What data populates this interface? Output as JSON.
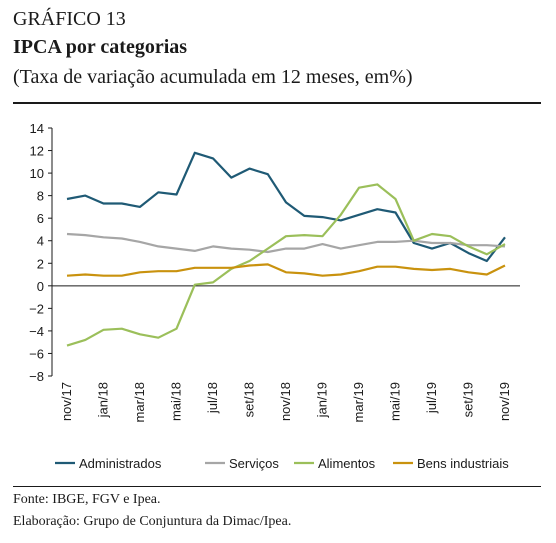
{
  "figure": {
    "number": "GRÁFICO 13",
    "title": "IPCA por categorias",
    "subtitle": "(Taxa de variação acumulada em 12 meses, em%)"
  },
  "footnotes": {
    "source": "Fonte: IBGE, FGV e Ipea.",
    "elaboration": "Elaboração: Grupo de Conjuntura da Dimac/Ipea."
  },
  "chart_data": {
    "type": "line",
    "x": [
      "nov/17",
      "dez/17",
      "jan/18",
      "fev/18",
      "mar/18",
      "abr/18",
      "mai/18",
      "jun/18",
      "jul/18",
      "ago/18",
      "set/18",
      "out/18",
      "nov/18",
      "dez/18",
      "jan/19",
      "fev/19",
      "mar/19",
      "abr/19",
      "mai/19",
      "jun/19",
      "jul/19",
      "ago/19",
      "set/19",
      "out/19",
      "nov/19"
    ],
    "xticklabels": [
      "nov/17",
      "jan/18",
      "mar/18",
      "mai/18",
      "jul/18",
      "set/18",
      "nov/18",
      "jan/19",
      "mar/19",
      "mai/19",
      "jul/19",
      "set/19",
      "nov/19"
    ],
    "ylim": [
      -8,
      14
    ],
    "yticks": [
      -8,
      -6,
      -4,
      -2,
      0,
      2,
      4,
      6,
      8,
      10,
      12,
      14
    ],
    "grid": false,
    "legend_position": "bottom",
    "series": [
      {
        "name": "Administrados",
        "color": "#1f5a75",
        "values": [
          7.7,
          8.0,
          7.3,
          7.3,
          7.0,
          8.3,
          8.1,
          11.8,
          11.3,
          9.6,
          10.4,
          9.9,
          7.4,
          6.2,
          6.1,
          5.8,
          6.3,
          6.8,
          6.5,
          3.8,
          3.3,
          3.8,
          2.9,
          2.2,
          4.3
        ]
      },
      {
        "name": "Serviços",
        "color": "#a6a6a6",
        "values": [
          4.6,
          4.5,
          4.3,
          4.2,
          3.9,
          3.5,
          3.3,
          3.1,
          3.5,
          3.3,
          3.2,
          3.0,
          3.3,
          3.3,
          3.7,
          3.3,
          3.6,
          3.9,
          3.9,
          4.0,
          3.8,
          3.8,
          3.6,
          3.6,
          3.5
        ]
      },
      {
        "name": "Alimentos",
        "color": "#9bbf5a",
        "values": [
          -5.3,
          -4.8,
          -3.9,
          -3.8,
          -4.3,
          -4.6,
          -3.8,
          0.1,
          0.3,
          1.5,
          2.2,
          3.3,
          4.4,
          4.5,
          4.4,
          6.3,
          8.7,
          9.0,
          7.7,
          4.0,
          4.6,
          4.4,
          3.5,
          2.8,
          3.7
        ]
      },
      {
        "name": "Bens industriais",
        "color": "#c9920e",
        "values": [
          0.9,
          1.0,
          0.9,
          0.9,
          1.2,
          1.3,
          1.3,
          1.6,
          1.6,
          1.6,
          1.8,
          1.9,
          1.2,
          1.1,
          0.9,
          1.0,
          1.3,
          1.7,
          1.7,
          1.5,
          1.4,
          1.5,
          1.2,
          1.0,
          1.8
        ]
      }
    ]
  }
}
